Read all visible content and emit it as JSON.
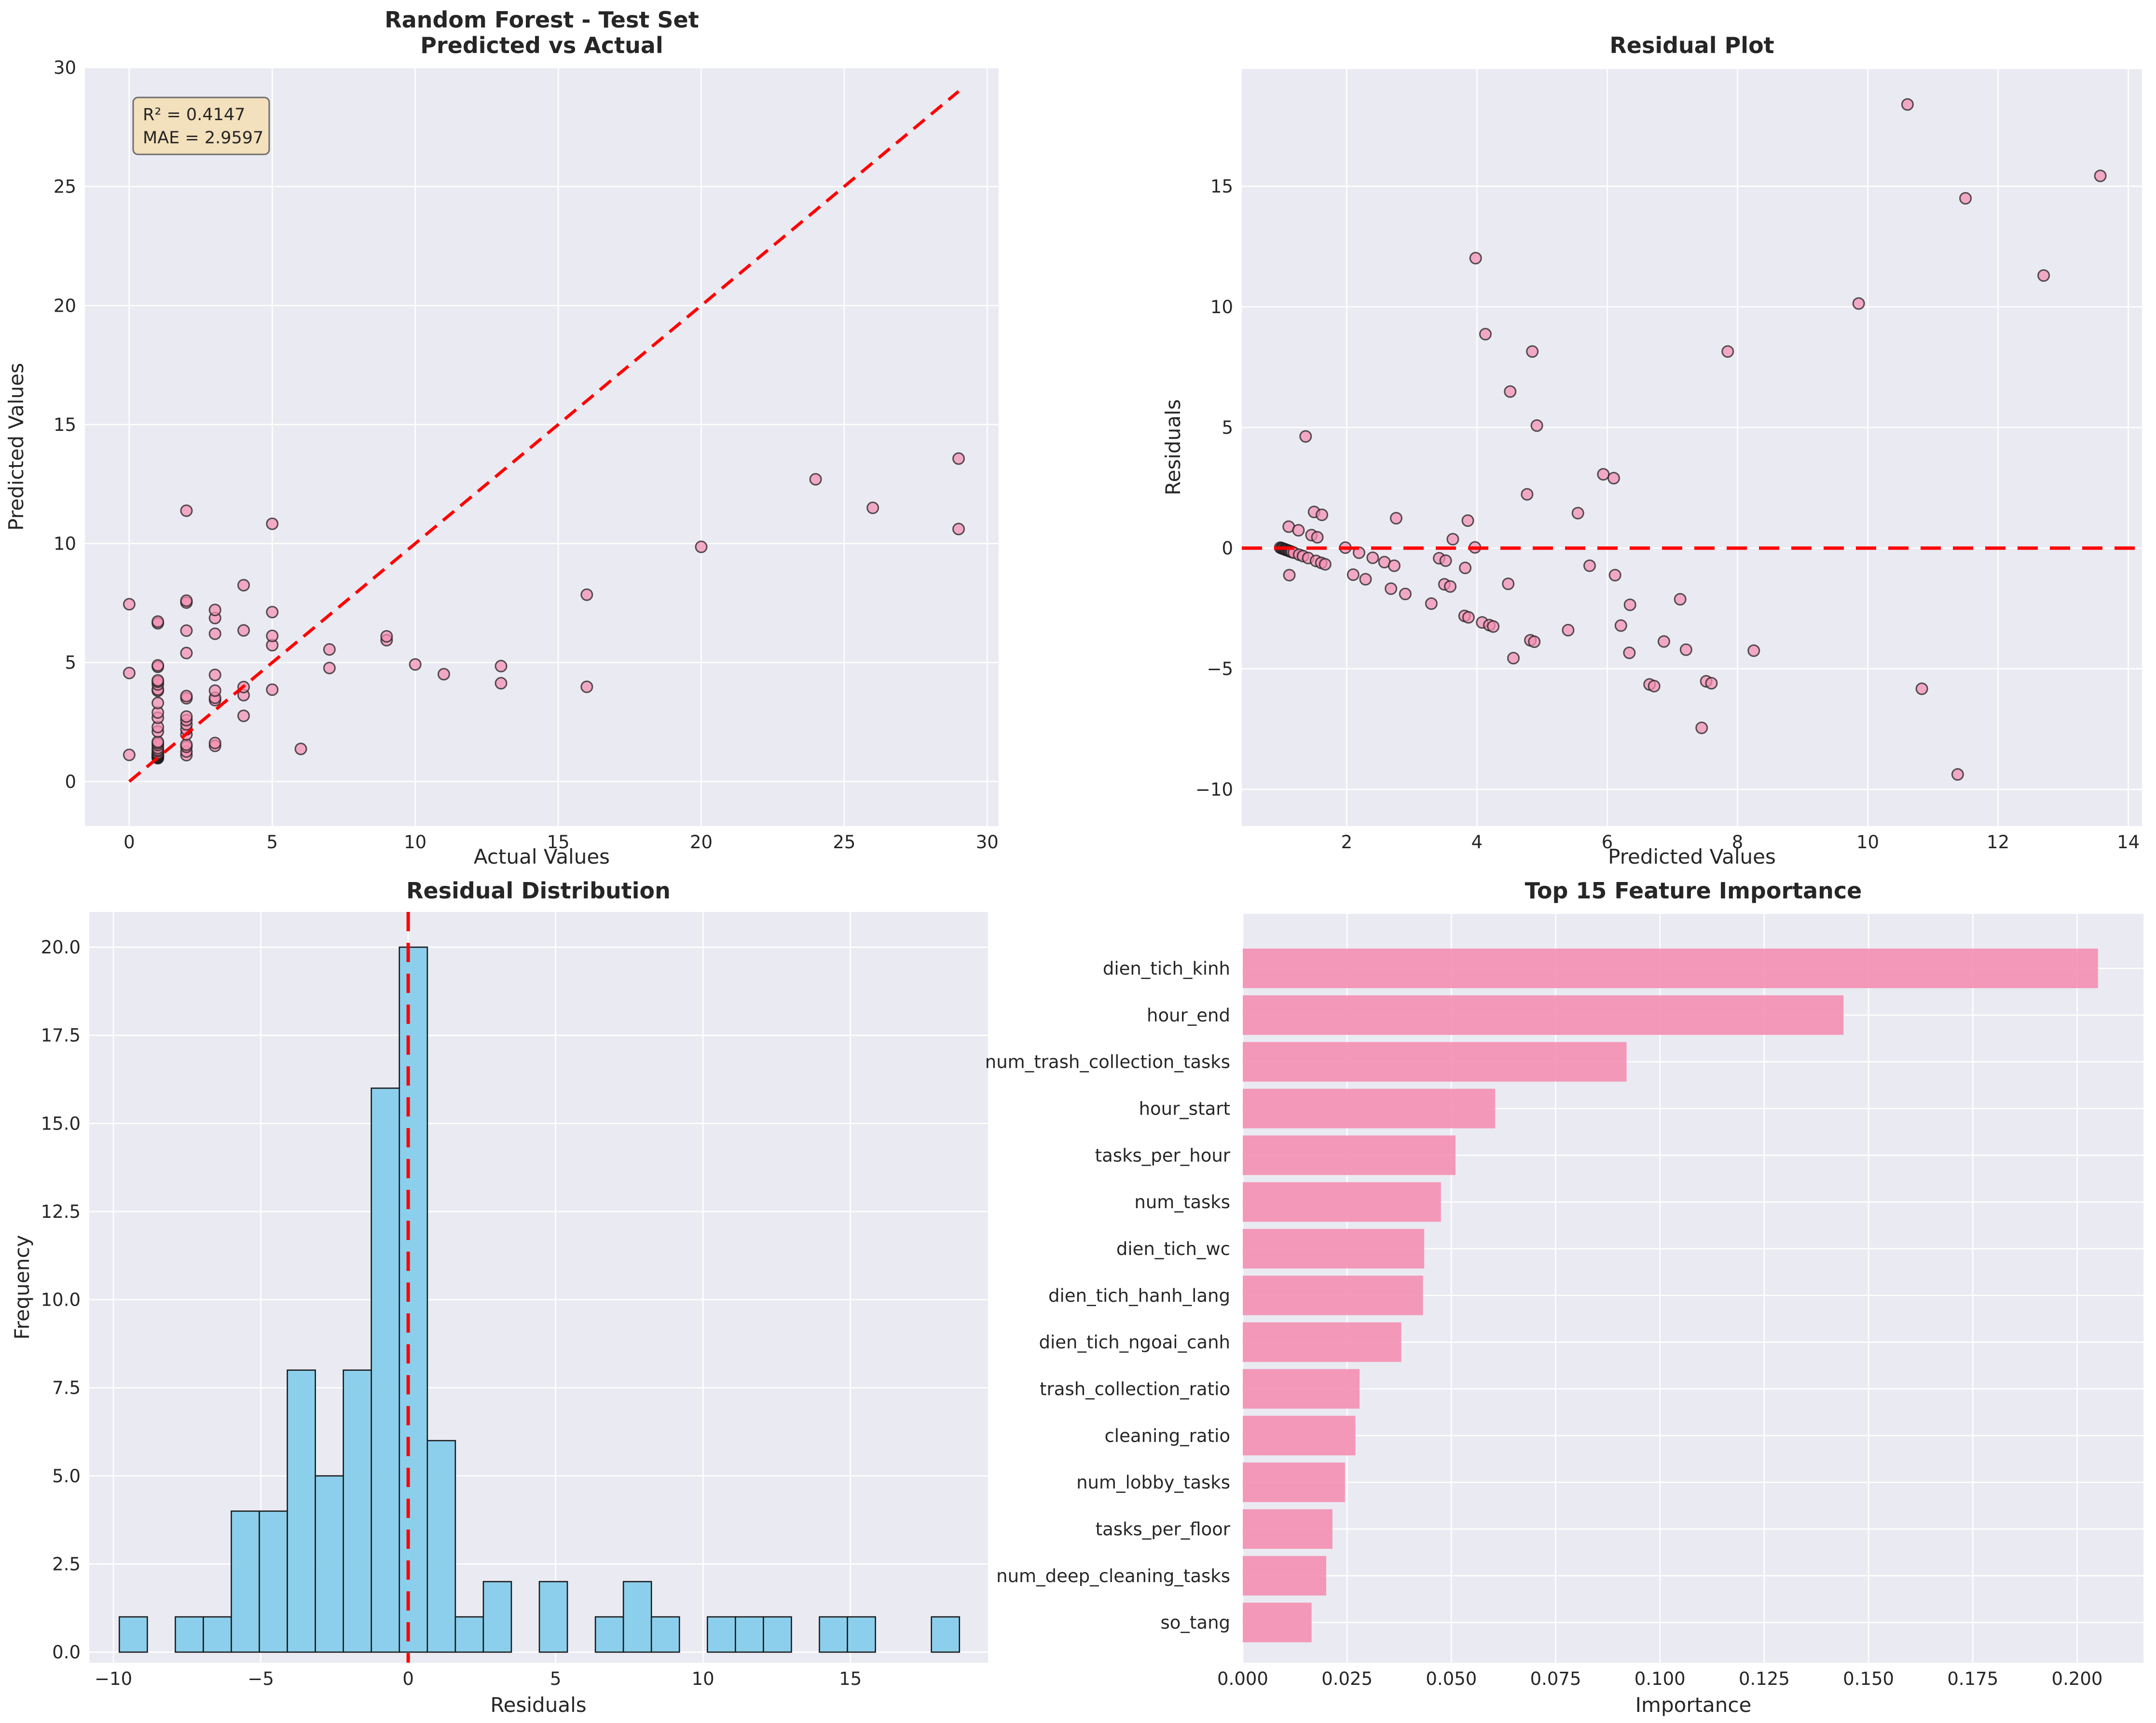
{
  "figure": {
    "background": "#ffffff",
    "panels": 4
  },
  "style": {
    "axes_background": "#eaeaf2",
    "grid_color": "#ffffff",
    "text_color": "#262626",
    "scatter_fill": "#f48fb1",
    "scatter_edge": "#1f1f1f",
    "hist_fill": "#87ceeb",
    "hist_edge": "#1a1a1a",
    "bar_fill": "#f48fb1",
    "refline_color": "#ff0000",
    "annotation_bg": "#f5deb3",
    "annotation_border": "#6e6e6e"
  },
  "chart_data": [
    {
      "id": "pred_vs_actual",
      "type": "scatter",
      "title_lines": [
        "Random Forest - Test Set",
        "Predicted vs Actual"
      ],
      "xlabel": "Actual Values",
      "ylabel": "Predicted Values",
      "xlim": [
        -1.55,
        30.4
      ],
      "ylim": [
        -1.87,
        30.0
      ],
      "xticks": [
        0,
        5,
        10,
        15,
        20,
        25,
        30
      ],
      "yticks": [
        0,
        5,
        10,
        15,
        20,
        25,
        30
      ],
      "identity_line": {
        "x": [
          0,
          29
        ],
        "y": [
          0,
          29
        ]
      },
      "annotation": {
        "lines": [
          "R² = 0.4147",
          "MAE = 2.9597"
        ],
        "r2": 0.4147,
        "mae": 2.9597
      },
      "points": [
        [
          0,
          1.12
        ],
        [
          0,
          4.56
        ],
        [
          0,
          7.45
        ],
        [
          1,
          0.98
        ],
        [
          1,
          1.0
        ],
        [
          1,
          1.01
        ],
        [
          1,
          1.02
        ],
        [
          1,
          1.04
        ],
        [
          1,
          1.05
        ],
        [
          1,
          1.06
        ],
        [
          1,
          1.07
        ],
        [
          1,
          1.08
        ],
        [
          1,
          1.1
        ],
        [
          1,
          1.11
        ],
        [
          1,
          1.12
        ],
        [
          1,
          1.13
        ],
        [
          1,
          1.15
        ],
        [
          1,
          1.16
        ],
        [
          1,
          1.19
        ],
        [
          1,
          1.27
        ],
        [
          1,
          1.33
        ],
        [
          1,
          1.41
        ],
        [
          1,
          1.53
        ],
        [
          1,
          1.61
        ],
        [
          1,
          1.67
        ],
        [
          1,
          2.1
        ],
        [
          1,
          2.29
        ],
        [
          1,
          2.68
        ],
        [
          1,
          2.9
        ],
        [
          1,
          3.3
        ],
        [
          1,
          3.81
        ],
        [
          1,
          3.87
        ],
        [
          1,
          4.08
        ],
        [
          1,
          4.19
        ],
        [
          1,
          4.25
        ],
        [
          1,
          4.82
        ],
        [
          1,
          4.88
        ],
        [
          1,
          6.65
        ],
        [
          1,
          6.72
        ],
        [
          2,
          1.11
        ],
        [
          2,
          1.26
        ],
        [
          2,
          1.46
        ],
        [
          2,
          1.55
        ],
        [
          2,
          1.98
        ],
        [
          2,
          2.19
        ],
        [
          2,
          2.4
        ],
        [
          2,
          2.58
        ],
        [
          2,
          2.73
        ],
        [
          2,
          3.5
        ],
        [
          2,
          3.59
        ],
        [
          2,
          5.4
        ],
        [
          2,
          6.34
        ],
        [
          2,
          7.52
        ],
        [
          2,
          7.6
        ],
        [
          2,
          11.38
        ],
        [
          3,
          1.5
        ],
        [
          3,
          1.62
        ],
        [
          3,
          3.42
        ],
        [
          3,
          3.52
        ],
        [
          3,
          3.82
        ],
        [
          3,
          4.48
        ],
        [
          3,
          6.21
        ],
        [
          3,
          6.87
        ],
        [
          3,
          7.21
        ],
        [
          4,
          2.76
        ],
        [
          4,
          3.63
        ],
        [
          4,
          3.97
        ],
        [
          4,
          6.35
        ],
        [
          4,
          8.25
        ],
        [
          5,
          3.86
        ],
        [
          5,
          5.73
        ],
        [
          5,
          6.12
        ],
        [
          5,
          7.12
        ],
        [
          5,
          10.83
        ],
        [
          6,
          1.37
        ],
        [
          7,
          4.77
        ],
        [
          7,
          5.55
        ],
        [
          9,
          5.94
        ],
        [
          9,
          6.1
        ],
        [
          10,
          4.92
        ],
        [
          11,
          4.51
        ],
        [
          13,
          4.13
        ],
        [
          13,
          4.85
        ],
        [
          16,
          3.98
        ],
        [
          16,
          7.85
        ],
        [
          20,
          9.86
        ],
        [
          24,
          12.7
        ],
        [
          26,
          11.5
        ],
        [
          29,
          13.57
        ],
        [
          29,
          10.61
        ]
      ]
    },
    {
      "id": "residual_plot",
      "type": "scatter",
      "title_lines": [
        "Residual Plot"
      ],
      "xlabel": "Predicted Values",
      "ylabel": "Residuals",
      "xlim": [
        0.39,
        14.21
      ],
      "ylim": [
        -11.52,
        19.86
      ],
      "xticks": [
        2,
        4,
        6,
        8,
        10,
        12,
        14
      ],
      "yticks": [
        -10,
        -5,
        0,
        5,
        10,
        15
      ],
      "refline_y": 0,
      "points": [
        [
          1.12,
          -1.12
        ],
        [
          4.56,
          -4.56
        ],
        [
          7.45,
          -7.45
        ],
        [
          0.98,
          0.02
        ],
        [
          1.0,
          0.0
        ],
        [
          1.01,
          -0.01
        ],
        [
          1.02,
          -0.02
        ],
        [
          1.04,
          -0.04
        ],
        [
          1.05,
          -0.05
        ],
        [
          1.06,
          -0.06
        ],
        [
          1.07,
          -0.07
        ],
        [
          1.08,
          -0.08
        ],
        [
          1.1,
          -0.1
        ],
        [
          1.11,
          -0.11
        ],
        [
          1.12,
          -0.12
        ],
        [
          1.13,
          -0.13
        ],
        [
          1.15,
          -0.15
        ],
        [
          1.16,
          -0.16
        ],
        [
          1.19,
          -0.19
        ],
        [
          1.27,
          -0.27
        ],
        [
          1.33,
          -0.33
        ],
        [
          1.41,
          -0.41
        ],
        [
          1.53,
          -0.53
        ],
        [
          1.61,
          -0.61
        ],
        [
          1.67,
          -0.67
        ],
        [
          2.1,
          -1.1
        ],
        [
          2.29,
          -1.29
        ],
        [
          2.68,
          -1.68
        ],
        [
          2.9,
          -1.9
        ],
        [
          3.3,
          -2.3
        ],
        [
          3.81,
          -2.81
        ],
        [
          3.87,
          -2.87
        ],
        [
          4.08,
          -3.08
        ],
        [
          4.19,
          -3.19
        ],
        [
          4.25,
          -3.25
        ],
        [
          4.82,
          -3.82
        ],
        [
          4.88,
          -3.88
        ],
        [
          6.65,
          -5.65
        ],
        [
          6.72,
          -5.72
        ],
        [
          1.11,
          0.89
        ],
        [
          1.26,
          0.74
        ],
        [
          1.46,
          0.54
        ],
        [
          1.55,
          0.45
        ],
        [
          1.98,
          0.02
        ],
        [
          2.19,
          -0.19
        ],
        [
          2.4,
          -0.4
        ],
        [
          2.58,
          -0.58
        ],
        [
          2.73,
          -0.73
        ],
        [
          3.5,
          -1.5
        ],
        [
          3.59,
          -1.59
        ],
        [
          5.4,
          -3.4
        ],
        [
          6.34,
          -4.34
        ],
        [
          7.52,
          -5.52
        ],
        [
          7.6,
          -5.6
        ],
        [
          11.38,
          -9.38
        ],
        [
          1.5,
          1.5
        ],
        [
          1.62,
          1.38
        ],
        [
          3.42,
          -0.42
        ],
        [
          3.52,
          -0.52
        ],
        [
          3.82,
          -0.82
        ],
        [
          4.48,
          -1.48
        ],
        [
          6.21,
          -3.21
        ],
        [
          6.87,
          -3.87
        ],
        [
          7.21,
          -4.21
        ],
        [
          2.76,
          1.24
        ],
        [
          3.63,
          0.37
        ],
        [
          3.97,
          0.03
        ],
        [
          6.35,
          -2.35
        ],
        [
          8.25,
          -4.25
        ],
        [
          3.86,
          1.14
        ],
        [
          5.73,
          -0.73
        ],
        [
          6.12,
          -1.12
        ],
        [
          7.12,
          -2.12
        ],
        [
          10.83,
          -5.83
        ],
        [
          1.37,
          4.63
        ],
        [
          4.77,
          2.23
        ],
        [
          5.55,
          1.45
        ],
        [
          5.94,
          3.06
        ],
        [
          6.1,
          2.9
        ],
        [
          4.92,
          5.08
        ],
        [
          4.51,
          6.49
        ],
        [
          4.13,
          8.87
        ],
        [
          4.85,
          8.15
        ],
        [
          3.98,
          12.02
        ],
        [
          7.85,
          8.15
        ],
        [
          9.86,
          10.14
        ],
        [
          12.7,
          11.3
        ],
        [
          11.5,
          14.5
        ],
        [
          13.57,
          15.43
        ],
        [
          10.61,
          18.39
        ]
      ]
    },
    {
      "id": "residual_distribution",
      "type": "histogram",
      "title_lines": [
        "Residual Distribution"
      ],
      "xlabel": "Residuals",
      "ylabel": "Frequency",
      "xlim": [
        -10.82,
        19.67
      ],
      "ylim": [
        -0.3,
        21.0
      ],
      "xticks": [
        -10,
        -5,
        0,
        5,
        10,
        15
      ],
      "yticks": [
        0.0,
        2.5,
        5.0,
        7.5,
        10.0,
        12.5,
        15.0,
        17.5,
        20.0
      ],
      "bin_start": -9.8,
      "bin_width": 0.95,
      "counts": [
        1,
        0,
        1,
        1,
        4,
        4,
        8,
        5,
        8,
        16,
        20,
        6,
        1,
        2,
        0,
        2,
        0,
        1,
        2,
        1,
        0,
        1,
        1,
        1,
        0,
        1,
        1,
        0,
        0,
        1
      ],
      "refline_x": 0
    },
    {
      "id": "feature_importance",
      "type": "bar",
      "title_lines": [
        "Top 15 Feature Importance"
      ],
      "xlabel": "Importance",
      "ylabel": "",
      "xlim": [
        0,
        0.2159
      ],
      "xticks": [
        0.0,
        0.025,
        0.05,
        0.075,
        0.1,
        0.125,
        0.15,
        0.175,
        0.2
      ],
      "categories": [
        "dien_tich_kinh",
        "hour_end",
        "num_trash_collection_tasks",
        "hour_start",
        "tasks_per_hour",
        "num_tasks",
        "dien_tich_wc",
        "dien_tich_hanh_lang",
        "dien_tich_ngoai_canh",
        "trash_collection_ratio",
        "cleaning_ratio",
        "num_lobby_tasks",
        "tasks_per_floor",
        "num_deep_cleaning_tasks",
        "so_tang"
      ],
      "values": [
        0.205,
        0.144,
        0.092,
        0.0605,
        0.051,
        0.0475,
        0.0435,
        0.0432,
        0.038,
        0.028,
        0.027,
        0.0245,
        0.0215,
        0.02,
        0.0165
      ]
    }
  ]
}
